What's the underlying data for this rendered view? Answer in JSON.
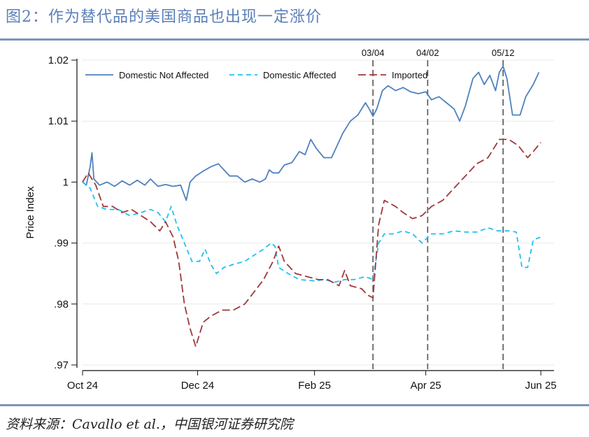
{
  "figure": {
    "title": "图2：作为替代品的美国商品也出现一定涨价",
    "source": "资料来源：Cavallo et al.，中国银河证券研究院"
  },
  "colors": {
    "title": "#5a7fb8",
    "rule": "#7f93b9",
    "domestic_not_affected": "#4f81bd",
    "domestic_affected": "#1fc1f0",
    "imported": "#a0383a",
    "event_line": "#555555"
  },
  "chart_data": {
    "type": "line",
    "title": "",
    "xlabel": "",
    "ylabel": "Price Index",
    "xlim": [
      "2024-10-01",
      "2025-06-08"
    ],
    "ylim": [
      0.97,
      1.02
    ],
    "grid": true,
    "legend_position": "top",
    "x_ticks": [
      {
        "date": "2024-10-01",
        "label": "Oct 24"
      },
      {
        "date": "2024-12-01",
        "label": "Dec 24"
      },
      {
        "date": "2025-02-01",
        "label": "Feb 25"
      },
      {
        "date": "2025-04-01",
        "label": "Apr 25"
      },
      {
        "date": "2025-06-01",
        "label": "Jun 25"
      }
    ],
    "y_ticks": [
      {
        "value": 0.97,
        "label": ".97"
      },
      {
        "value": 0.98,
        "label": ".98"
      },
      {
        "value": 0.99,
        "label": ".99"
      },
      {
        "value": 1.0,
        "label": "1"
      },
      {
        "value": 1.01,
        "label": "1.01"
      },
      {
        "value": 1.02,
        "label": "1.02"
      }
    ],
    "event_lines": [
      {
        "date": "2025-03-04",
        "label": "03/04"
      },
      {
        "date": "2025-04-02",
        "label": "04/02"
      },
      {
        "date": "2025-05-12",
        "label": "05/12"
      }
    ],
    "series": [
      {
        "name": "Domestic Not Affected",
        "style": "solid",
        "points": [
          [
            "2024-10-01",
            1.0
          ],
          [
            "2024-10-03",
            0.9995
          ],
          [
            "2024-10-05",
            1.0025
          ],
          [
            "2024-10-06",
            1.0048
          ],
          [
            "2024-10-07",
            1.0005
          ],
          [
            "2024-10-10",
            0.9995
          ],
          [
            "2024-10-14",
            1.0
          ],
          [
            "2024-10-18",
            0.9993
          ],
          [
            "2024-10-22",
            1.0002
          ],
          [
            "2024-10-26",
            0.9995
          ],
          [
            "2024-10-30",
            1.0003
          ],
          [
            "2024-11-03",
            0.9995
          ],
          [
            "2024-11-06",
            1.0005
          ],
          [
            "2024-11-10",
            0.9993
          ],
          [
            "2024-11-14",
            0.9996
          ],
          [
            "2024-11-18",
            0.9993
          ],
          [
            "2024-11-22",
            0.9995
          ],
          [
            "2024-11-25",
            0.997
          ],
          [
            "2024-11-27",
            1.0
          ],
          [
            "2024-11-30",
            1.001
          ],
          [
            "2024-12-04",
            1.0018
          ],
          [
            "2024-12-08",
            1.0025
          ],
          [
            "2024-12-12",
            1.003
          ],
          [
            "2024-12-15",
            1.002
          ],
          [
            "2024-12-18",
            1.001
          ],
          [
            "2024-12-22",
            1.001
          ],
          [
            "2024-12-26",
            1.0
          ],
          [
            "2024-12-30",
            1.0005
          ],
          [
            "2025-01-03",
            1.0
          ],
          [
            "2025-01-06",
            1.0005
          ],
          [
            "2025-01-08",
            1.002
          ],
          [
            "2025-01-10",
            1.0015
          ],
          [
            "2025-01-13",
            1.0015
          ],
          [
            "2025-01-16",
            1.0028
          ],
          [
            "2025-01-20",
            1.0032
          ],
          [
            "2025-01-24",
            1.005
          ],
          [
            "2025-01-27",
            1.0045
          ],
          [
            "2025-01-30",
            1.007
          ],
          [
            "2025-02-02",
            1.0055
          ],
          [
            "2025-02-06",
            1.004
          ],
          [
            "2025-02-10",
            1.004
          ],
          [
            "2025-02-13",
            1.006
          ],
          [
            "2025-02-16",
            1.008
          ],
          [
            "2025-02-20",
            1.01
          ],
          [
            "2025-02-24",
            1.011
          ],
          [
            "2025-02-28",
            1.013
          ],
          [
            "2025-03-02",
            1.012
          ],
          [
            "2025-03-04",
            1.0108
          ],
          [
            "2025-03-06",
            1.012
          ],
          [
            "2025-03-09",
            1.015
          ],
          [
            "2025-03-12",
            1.0158
          ],
          [
            "2025-03-16",
            1.015
          ],
          [
            "2025-03-20",
            1.0155
          ],
          [
            "2025-03-24",
            1.0148
          ],
          [
            "2025-03-28",
            1.0145
          ],
          [
            "2025-04-01",
            1.0148
          ],
          [
            "2025-04-04",
            1.0135
          ],
          [
            "2025-04-08",
            1.014
          ],
          [
            "2025-04-12",
            1.013
          ],
          [
            "2025-04-16",
            1.012
          ],
          [
            "2025-04-19",
            1.01
          ],
          [
            "2025-04-22",
            1.0125
          ],
          [
            "2025-04-26",
            1.017
          ],
          [
            "2025-04-29",
            1.018
          ],
          [
            "2025-05-02",
            1.016
          ],
          [
            "2025-05-05",
            1.0175
          ],
          [
            "2025-05-08",
            1.015
          ],
          [
            "2025-05-10",
            1.018
          ],
          [
            "2025-05-12",
            1.019
          ],
          [
            "2025-05-14",
            1.017
          ],
          [
            "2025-05-17",
            1.011
          ],
          [
            "2025-05-21",
            1.011
          ],
          [
            "2025-05-24",
            1.014
          ],
          [
            "2025-05-28",
            1.016
          ],
          [
            "2025-05-31",
            1.018
          ]
        ]
      },
      {
        "name": "Domestic Affected",
        "style": "dashed",
        "points": [
          [
            "2024-10-01",
            1.0
          ],
          [
            "2024-10-05",
            0.999
          ],
          [
            "2024-10-09",
            0.996
          ],
          [
            "2024-10-14",
            0.9955
          ],
          [
            "2024-10-20",
            0.9955
          ],
          [
            "2024-10-26",
            0.9945
          ],
          [
            "2024-11-01",
            0.995
          ],
          [
            "2024-11-06",
            0.9955
          ],
          [
            "2024-11-10",
            0.995
          ],
          [
            "2024-11-14",
            0.9935
          ],
          [
            "2024-11-17",
            0.996
          ],
          [
            "2024-11-20",
            0.993
          ],
          [
            "2024-11-24",
            0.99
          ],
          [
            "2024-11-28",
            0.987
          ],
          [
            "2024-12-02",
            0.987
          ],
          [
            "2024-12-05",
            0.989
          ],
          [
            "2024-12-08",
            0.9865
          ],
          [
            "2024-12-11",
            0.985
          ],
          [
            "2024-12-15",
            0.986
          ],
          [
            "2024-12-20",
            0.9865
          ],
          [
            "2024-12-26",
            0.987
          ],
          [
            "2024-12-31",
            0.988
          ],
          [
            "2025-01-05",
            0.989
          ],
          [
            "2025-01-09",
            0.99
          ],
          [
            "2025-01-11",
            0.9895
          ],
          [
            "2025-01-13",
            0.986
          ],
          [
            "2025-01-18",
            0.985
          ],
          [
            "2025-01-24",
            0.984
          ],
          [
            "2025-02-01",
            0.9838
          ],
          [
            "2025-02-06",
            0.984
          ],
          [
            "2025-02-12",
            0.9836
          ],
          [
            "2025-02-17",
            0.984
          ],
          [
            "2025-02-22",
            0.984
          ],
          [
            "2025-02-28",
            0.9845
          ],
          [
            "2025-03-04",
            0.984
          ],
          [
            "2025-03-07",
            0.99
          ],
          [
            "2025-03-10",
            0.9915
          ],
          [
            "2025-03-15",
            0.9915
          ],
          [
            "2025-03-20",
            0.992
          ],
          [
            "2025-03-25",
            0.9915
          ],
          [
            "2025-03-30",
            0.99
          ],
          [
            "2025-04-04",
            0.9915
          ],
          [
            "2025-04-10",
            0.9915
          ],
          [
            "2025-04-16",
            0.992
          ],
          [
            "2025-04-22",
            0.9918
          ],
          [
            "2025-04-28",
            0.9918
          ],
          [
            "2025-05-04",
            0.9925
          ],
          [
            "2025-05-09",
            0.992
          ],
          [
            "2025-05-15",
            0.992
          ],
          [
            "2025-05-19",
            0.9918
          ],
          [
            "2025-05-22",
            0.986
          ],
          [
            "2025-05-25",
            0.986
          ],
          [
            "2025-05-28",
            0.9905
          ],
          [
            "2025-06-01",
            0.991
          ]
        ]
      },
      {
        "name": "Imported",
        "style": "longdash",
        "points": [
          [
            "2024-10-01",
            1.0
          ],
          [
            "2024-10-04",
            1.0015
          ],
          [
            "2024-10-08",
            0.9995
          ],
          [
            "2024-10-12",
            0.996
          ],
          [
            "2024-10-17",
            0.996
          ],
          [
            "2024-10-22",
            0.995
          ],
          [
            "2024-10-27",
            0.9955
          ],
          [
            "2024-11-01",
            0.9945
          ],
          [
            "2024-11-06",
            0.9935
          ],
          [
            "2024-11-11",
            0.992
          ],
          [
            "2024-11-14",
            0.9935
          ],
          [
            "2024-11-18",
            0.991
          ],
          [
            "2024-11-21",
            0.987
          ],
          [
            "2024-11-24",
            0.98
          ],
          [
            "2024-11-27",
            0.976
          ],
          [
            "2024-11-30",
            0.973
          ],
          [
            "2024-12-04",
            0.977
          ],
          [
            "2024-12-08",
            0.978
          ],
          [
            "2024-12-14",
            0.979
          ],
          [
            "2024-12-20",
            0.979
          ],
          [
            "2024-12-26",
            0.98
          ],
          [
            "2024-12-31",
            0.982
          ],
          [
            "2025-01-05",
            0.984
          ],
          [
            "2025-01-10",
            0.987
          ],
          [
            "2025-01-13",
            0.9895
          ],
          [
            "2025-01-16",
            0.987
          ],
          [
            "2025-01-22",
            0.985
          ],
          [
            "2025-01-28",
            0.9845
          ],
          [
            "2025-02-03",
            0.984
          ],
          [
            "2025-02-08",
            0.984
          ],
          [
            "2025-02-14",
            0.983
          ],
          [
            "2025-02-17",
            0.9855
          ],
          [
            "2025-02-20",
            0.983
          ],
          [
            "2025-02-26",
            0.9825
          ],
          [
            "2025-03-01",
            0.9815
          ],
          [
            "2025-03-04",
            0.981
          ],
          [
            "2025-03-07",
            0.993
          ],
          [
            "2025-03-10",
            0.997
          ],
          [
            "2025-03-16",
            0.996
          ],
          [
            "2025-03-20",
            0.995
          ],
          [
            "2025-03-25",
            0.994
          ],
          [
            "2025-03-30",
            0.9945
          ],
          [
            "2025-04-04",
            0.996
          ],
          [
            "2025-04-10",
            0.997
          ],
          [
            "2025-04-16",
            0.999
          ],
          [
            "2025-04-22",
            1.001
          ],
          [
            "2025-04-28",
            1.003
          ],
          [
            "2025-05-04",
            1.004
          ],
          [
            "2025-05-10",
            1.007
          ],
          [
            "2025-05-15",
            1.007
          ],
          [
            "2025-05-20",
            1.006
          ],
          [
            "2025-05-25",
            1.004
          ],
          [
            "2025-05-28",
            1.005
          ],
          [
            "2025-06-01",
            1.0065
          ]
        ]
      }
    ]
  }
}
